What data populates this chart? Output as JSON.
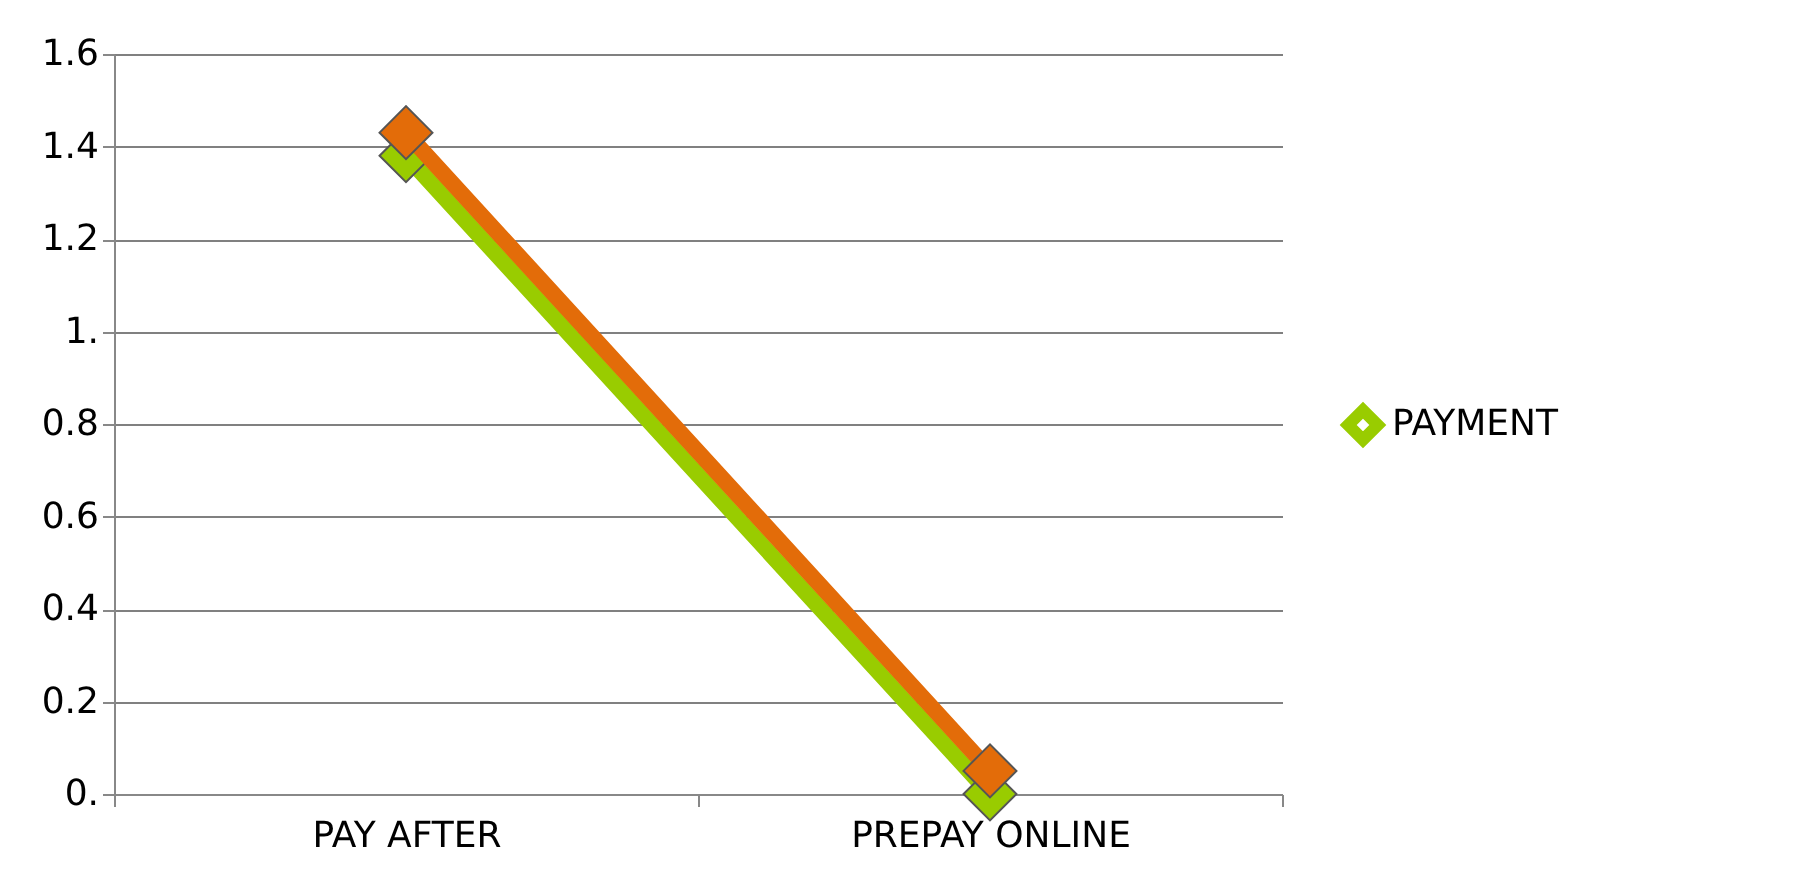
{
  "chart_data": {
    "type": "line",
    "categories": [
      "PAY AFTER",
      "PREPAY ONLINE"
    ],
    "series": [
      {
        "name": "PAYMENT",
        "color": "#99cc00",
        "values": [
          1.38,
          0.0
        ]
      },
      {
        "color": "#e36c09",
        "values": [
          1.43,
          0.05
        ]
      }
    ],
    "ylim": [
      0,
      1.6
    ],
    "yticks": [
      {
        "value": 0,
        "label": "0."
      },
      0.2,
      0.4,
      0.6,
      0.8,
      {
        "value": 1,
        "label": "1."
      },
      1.2,
      1.4,
      1.6
    ],
    "grid": "y",
    "legend": "right",
    "marker": "diamond",
    "line_style": "solid"
  }
}
